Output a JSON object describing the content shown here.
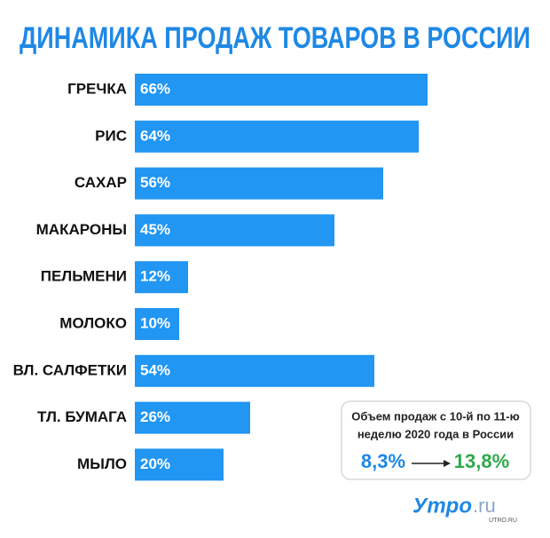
{
  "chart_data": {
    "type": "bar",
    "orientation": "horizontal",
    "title": "ДИНАМИКА ПРОДАЖ ТОВАРОВ В РОССИИ",
    "categories": [
      "ГРЕЧКА",
      "РИС",
      "САХАР",
      "МАКАРОНЫ",
      "ПЕЛЬМЕНИ",
      "МОЛОКО",
      "ВЛ. САЛФЕТКИ",
      "ТЛ. БУМАГА",
      "МЫЛО"
    ],
    "values": [
      66,
      64,
      56,
      45,
      12,
      10,
      54,
      26,
      20
    ],
    "value_labels": [
      "66%",
      "64%",
      "56%",
      "45%",
      "12%",
      "10%",
      "54%",
      "26%",
      "20%"
    ],
    "color": "#2196f3",
    "annotation": {
      "lines": [
        "Объем продаж с 10-й по 11-ю",
        "неделю 2020 года в России"
      ],
      "from": {
        "value": 8.3,
        "label": "8,3%"
      },
      "to": {
        "value": 13.8,
        "label": "13,8%"
      },
      "from_color": "#1e88e5",
      "to_color": "#2eaa4a"
    },
    "logo": {
      "name": "Утро",
      "suffix": ".ru",
      "url": "UTRO.RU"
    }
  }
}
